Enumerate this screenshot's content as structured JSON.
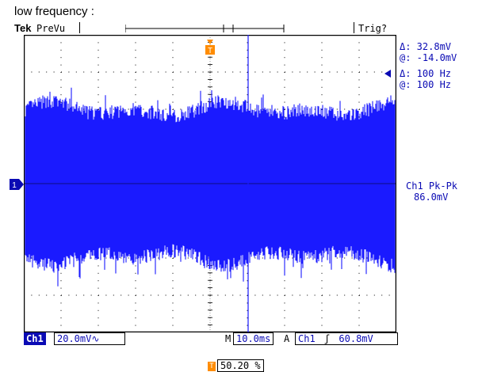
{
  "caption": "low frequency :",
  "header": {
    "brand": "Tek",
    "mode": "PreVu",
    "trigger_status": "Trig?"
  },
  "cursor_readouts": {
    "voltage_delta": "Δ:  32.8mV",
    "voltage_at": "@: -14.0mV",
    "freq_delta": "Δ:  100 Hz",
    "freq_at": "@:  100 Hz"
  },
  "measurement": {
    "label": "Ch1 Pk-Pk",
    "value": "86.0mV"
  },
  "channel_marker": "1",
  "trigger_marker": "T",
  "bottom_bar": {
    "channel": "Ch1",
    "vdiv": "20.0mV∿",
    "m_label": "M",
    "timebase": "10.0ms",
    "a_label": "A",
    "trig_source": "Ch1",
    "trig_slope": "ʃ",
    "trig_level": "60.8mV"
  },
  "trigger_position": "50.20 %",
  "colors": {
    "trace": "#1a1aff",
    "grid": "#000000",
    "accent": "#ff8c00",
    "text": "#0a0ab4"
  }
}
